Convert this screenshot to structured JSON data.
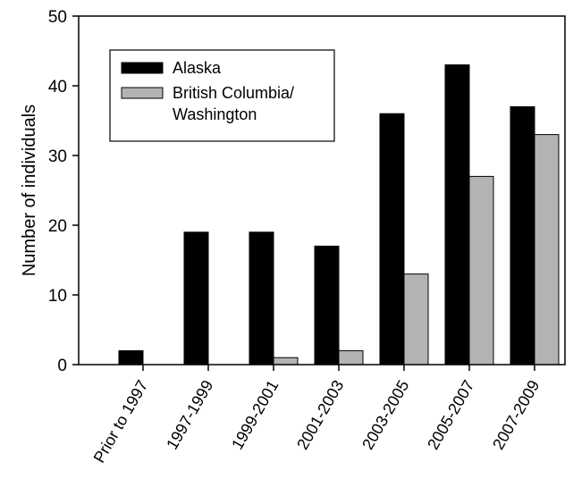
{
  "chart_data": {
    "type": "bar",
    "ylabel": "Number of individuals",
    "xlabel": "",
    "title": "",
    "ylim": [
      0,
      50
    ],
    "yticks": [
      0,
      10,
      20,
      30,
      40,
      50
    ],
    "categories": [
      "Prior to 1997",
      "1997-1999",
      "1999-2001",
      "2001-2003",
      "2003-2005",
      "2005-2007",
      "2007-2009"
    ],
    "series": [
      {
        "name": "Alaska",
        "color": "#000000",
        "values": [
          2,
          19,
          19,
          17,
          36,
          43,
          37
        ]
      },
      {
        "name": "British Columbia/ Washington",
        "color": "#b3b3b3",
        "values": [
          0,
          0,
          1,
          2,
          13,
          27,
          33
        ]
      }
    ],
    "legend": {
      "placement": "top-left",
      "entries": [
        {
          "lines": [
            "Alaska"
          ]
        },
        {
          "lines": [
            "British Columbia/",
            "Washington"
          ]
        }
      ]
    },
    "grid": false
  }
}
